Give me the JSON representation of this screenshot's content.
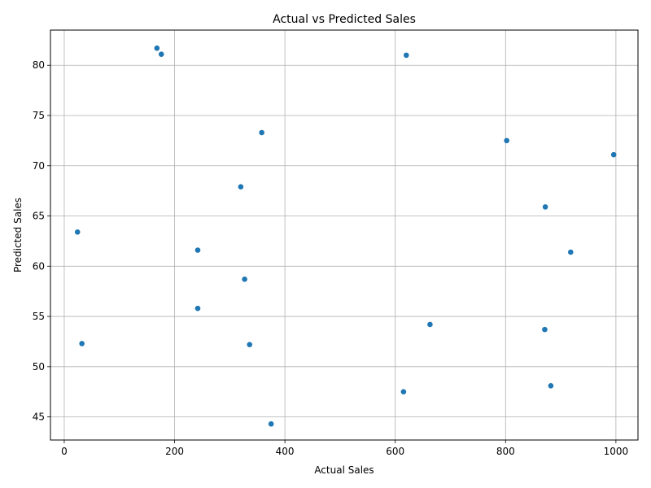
{
  "chart_data": {
    "type": "scatter",
    "title": "Actual vs Predicted Sales",
    "xlabel": "Actual Sales",
    "ylabel": "Predicted Sales",
    "xlim": [
      -25,
      1040
    ],
    "ylim": [
      42.7,
      83.5
    ],
    "xticks": [
      0,
      200,
      400,
      600,
      800,
      1000
    ],
    "yticks": [
      45,
      50,
      55,
      60,
      65,
      70,
      75,
      80
    ],
    "grid": true,
    "color": "#1f77b4",
    "points": [
      {
        "x": 168,
        "y": 81.7
      },
      {
        "x": 176,
        "y": 81.1
      },
      {
        "x": 620,
        "y": 81.0
      },
      {
        "x": 358,
        "y": 73.3
      },
      {
        "x": 802,
        "y": 72.5
      },
      {
        "x": 996,
        "y": 71.1
      },
      {
        "x": 320,
        "y": 67.9
      },
      {
        "x": 872,
        "y": 65.9
      },
      {
        "x": 24,
        "y": 63.4
      },
      {
        "x": 242,
        "y": 61.6
      },
      {
        "x": 918,
        "y": 61.4
      },
      {
        "x": 327,
        "y": 58.7
      },
      {
        "x": 242,
        "y": 55.8
      },
      {
        "x": 663,
        "y": 54.2
      },
      {
        "x": 871,
        "y": 53.7
      },
      {
        "x": 32,
        "y": 52.3
      },
      {
        "x": 336,
        "y": 52.2
      },
      {
        "x": 882,
        "y": 48.1
      },
      {
        "x": 615,
        "y": 47.5
      },
      {
        "x": 375,
        "y": 44.3
      }
    ]
  }
}
